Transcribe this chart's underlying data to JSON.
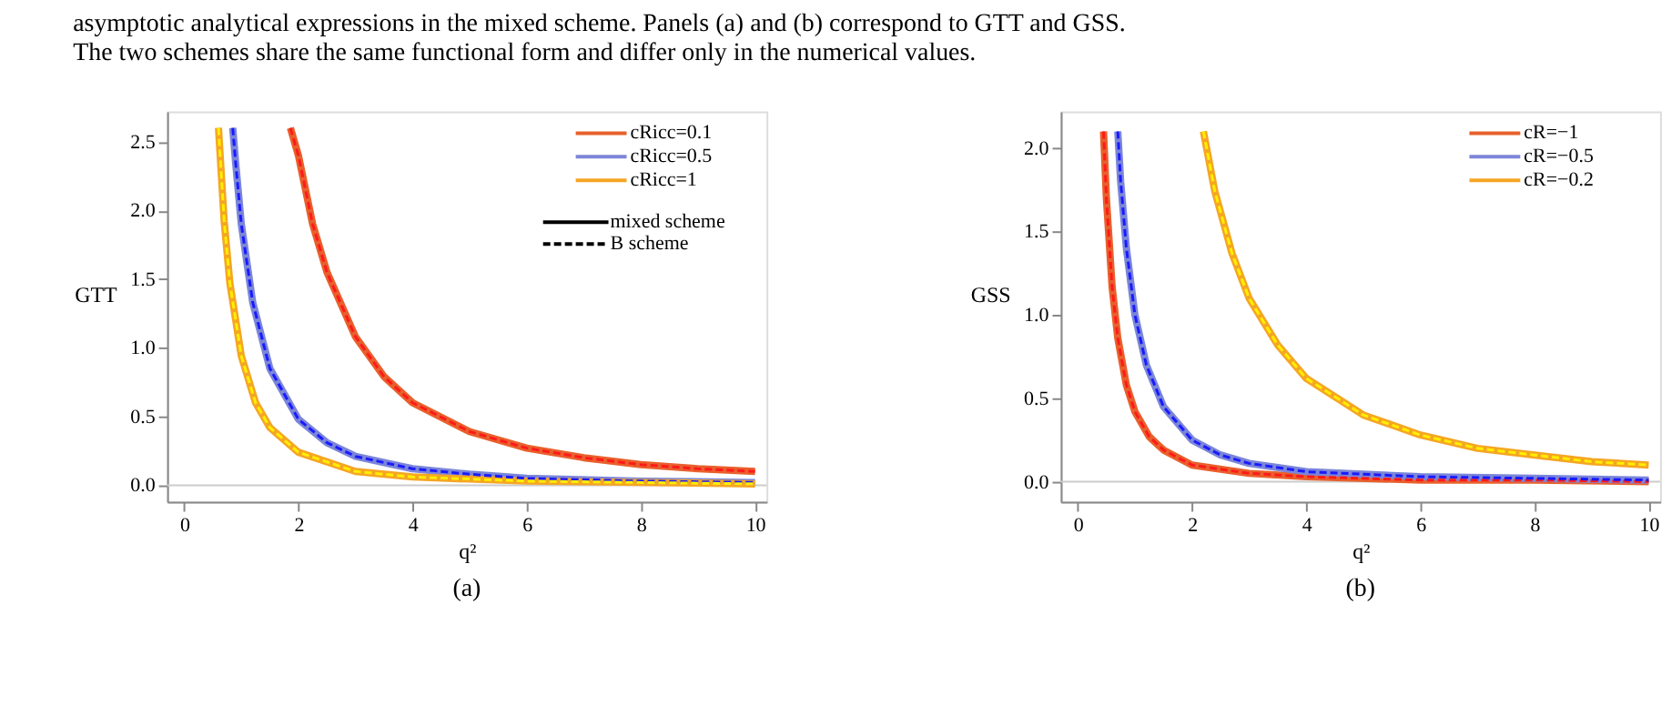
{
  "chart_data": [
    {
      "type": "line",
      "title": "(a)",
      "xlabel": "q²",
      "ylabel": "GTT",
      "annotations": [
        "asymptotic analytical expressions in the mixed scheme. Panels (a) and (b) correspond to GTT and GSS.",
        "The two schemes share the same functional form and differ only in the numerical values.",
        "mixed scheme",
        "B scheme"
      ],
      "xlim": [
        -0.3,
        10.2
      ],
      "xticks": [
        0,
        2,
        4,
        6,
        8,
        10
      ],
      "ylim": [
        -0.12,
        2.72
      ],
      "yticks": [
        {
          "value": 0,
          "label": "0.0"
        },
        {
          "value": 0.5,
          "label": "0.5"
        },
        {
          "value": 1,
          "label": "1.0"
        },
        {
          "value": 1.5,
          "label": "1.5"
        },
        {
          "value": 2,
          "label": "2.0"
        },
        {
          "value": 2.5,
          "label": "2.5"
        }
      ],
      "grid": false,
      "legend": "top right",
      "marker": "none",
      "ref_lines": [
        {
          "axis": "y",
          "value": 0,
          "color": "#cccccc"
        }
      ],
      "series": [
        {
          "name": "cRicc=0.1",
          "color": "#e8602c",
          "line_style": "solid",
          "x": [
            1.86,
            2,
            2.25,
            2.5,
            3,
            3.5,
            4,
            5,
            6,
            7,
            8,
            9,
            10
          ],
          "values": [
            2.6,
            2.4,
            1.9,
            1.55,
            1.08,
            0.79,
            0.6,
            0.39,
            0.27,
            0.2,
            0.15,
            0.12,
            0.1
          ]
        },
        {
          "name": "cRicc=0.5",
          "color": "#7b86d8",
          "line_style": "solid",
          "x": [
            0.85,
            0.9,
            1,
            1.2,
            1.5,
            2,
            2.5,
            3,
            4,
            5,
            6,
            8,
            10
          ],
          "values": [
            2.6,
            2.35,
            1.9,
            1.33,
            0.85,
            0.48,
            0.31,
            0.21,
            0.12,
            0.08,
            0.05,
            0.03,
            0.02
          ]
        },
        {
          "name": "cRicc=1",
          "color": "#f5a623",
          "line_style": "solid",
          "x": [
            0.6,
            0.7,
            0.8,
            1,
            1.25,
            1.5,
            2,
            3,
            4,
            6,
            8,
            10
          ],
          "values": [
            2.6,
            1.92,
            1.47,
            0.94,
            0.6,
            0.42,
            0.24,
            0.1,
            0.06,
            0.03,
            0.02,
            0.01
          ]
        },
        {
          "color": "#ff1a1a",
          "line_style": "dashed",
          "x": [
            1.86,
            2,
            2.25,
            2.5,
            3,
            3.5,
            4,
            5,
            6,
            7,
            8,
            9,
            10
          ],
          "values": [
            2.6,
            2.4,
            1.9,
            1.55,
            1.08,
            0.79,
            0.6,
            0.39,
            0.27,
            0.2,
            0.15,
            0.12,
            0.1
          ]
        },
        {
          "color": "#1a1aff",
          "line_style": "dashed",
          "x": [
            0.85,
            0.9,
            1,
            1.2,
            1.5,
            2,
            2.5,
            3,
            4,
            5,
            6,
            8,
            10
          ],
          "values": [
            2.6,
            2.35,
            1.9,
            1.33,
            0.85,
            0.48,
            0.31,
            0.21,
            0.12,
            0.08,
            0.05,
            0.03,
            0.02
          ]
        },
        {
          "color": "#ffee00",
          "line_style": "dashed",
          "x": [
            0.6,
            0.7,
            0.8,
            1,
            1.25,
            1.5,
            2,
            3,
            4,
            6,
            8,
            10
          ],
          "values": [
            2.6,
            1.92,
            1.47,
            0.94,
            0.6,
            0.42,
            0.24,
            0.1,
            0.06,
            0.03,
            0.02,
            0.01
          ]
        }
      ]
    },
    {
      "type": "line",
      "title": "(b)",
      "xlabel": "q²",
      "ylabel": "GSS",
      "xlim": [
        -0.3,
        10.2
      ],
      "xticks": [
        0,
        2,
        4,
        6,
        8,
        10
      ],
      "ylim": [
        -0.12,
        2.22
      ],
      "yticks": [
        {
          "value": 0,
          "label": "0.0"
        },
        {
          "value": 0.5,
          "label": "0.5"
        },
        {
          "value": 1,
          "label": "1.0"
        },
        {
          "value": 1.5,
          "label": "1.5"
        },
        {
          "value": 2,
          "label": "2.0"
        }
      ],
      "grid": false,
      "legend": "top right",
      "marker": "none",
      "ref_lines": [
        {
          "axis": "y",
          "value": 0,
          "color": "#cccccc"
        }
      ],
      "series": [
        {
          "name": "cR=−1",
          "color": "#e8602c",
          "line_style": "solid",
          "x": [
            0.45,
            0.5,
            0.6,
            0.7,
            0.85,
            1,
            1.25,
            1.5,
            2,
            3,
            4,
            6,
            8,
            10
          ],
          "values": [
            2.1,
            1.7,
            1.17,
            0.86,
            0.58,
            0.42,
            0.27,
            0.19,
            0.1,
            0.05,
            0.03,
            0.01,
            0.01,
            0.0
          ]
        },
        {
          "name": "cR=−0.5",
          "color": "#7b86d8",
          "line_style": "solid",
          "x": [
            0.7,
            0.75,
            0.85,
            1,
            1.2,
            1.5,
            2,
            2.5,
            3,
            4,
            6,
            8,
            10
          ],
          "values": [
            2.1,
            1.8,
            1.4,
            1.0,
            0.7,
            0.45,
            0.25,
            0.16,
            0.11,
            0.06,
            0.03,
            0.02,
            0.01
          ]
        },
        {
          "name": "cR=−0.2",
          "color": "#f5a623",
          "line_style": "solid",
          "x": [
            2.2,
            2.4,
            2.7,
            3,
            3.5,
            4,
            5,
            6,
            7,
            8,
            9,
            10
          ],
          "values": [
            2.1,
            1.74,
            1.37,
            1.1,
            0.82,
            0.62,
            0.4,
            0.28,
            0.2,
            0.16,
            0.12,
            0.1
          ]
        },
        {
          "color": "#ff1a1a",
          "line_style": "dashed",
          "x": [
            0.45,
            0.5,
            0.6,
            0.7,
            0.85,
            1,
            1.25,
            1.5,
            2,
            3,
            4,
            6,
            8,
            10
          ],
          "values": [
            2.1,
            1.7,
            1.17,
            0.86,
            0.58,
            0.42,
            0.27,
            0.19,
            0.1,
            0.05,
            0.03,
            0.01,
            0.01,
            0.0
          ]
        },
        {
          "color": "#1a1aff",
          "line_style": "dashed",
          "x": [
            0.7,
            0.75,
            0.85,
            1,
            1.2,
            1.5,
            2,
            2.5,
            3,
            4,
            6,
            8,
            10
          ],
          "values": [
            2.1,
            1.8,
            1.4,
            1.0,
            0.7,
            0.45,
            0.25,
            0.16,
            0.11,
            0.06,
            0.03,
            0.02,
            0.01
          ]
        },
        {
          "color": "#ffee00",
          "line_style": "dashed",
          "x": [
            2.2,
            2.4,
            2.7,
            3,
            3.5,
            4,
            5,
            6,
            7,
            8,
            9,
            10
          ],
          "values": [
            2.1,
            1.74,
            1.37,
            1.1,
            0.82,
            0.62,
            0.4,
            0.28,
            0.2,
            0.16,
            0.12,
            0.1
          ]
        }
      ]
    }
  ]
}
